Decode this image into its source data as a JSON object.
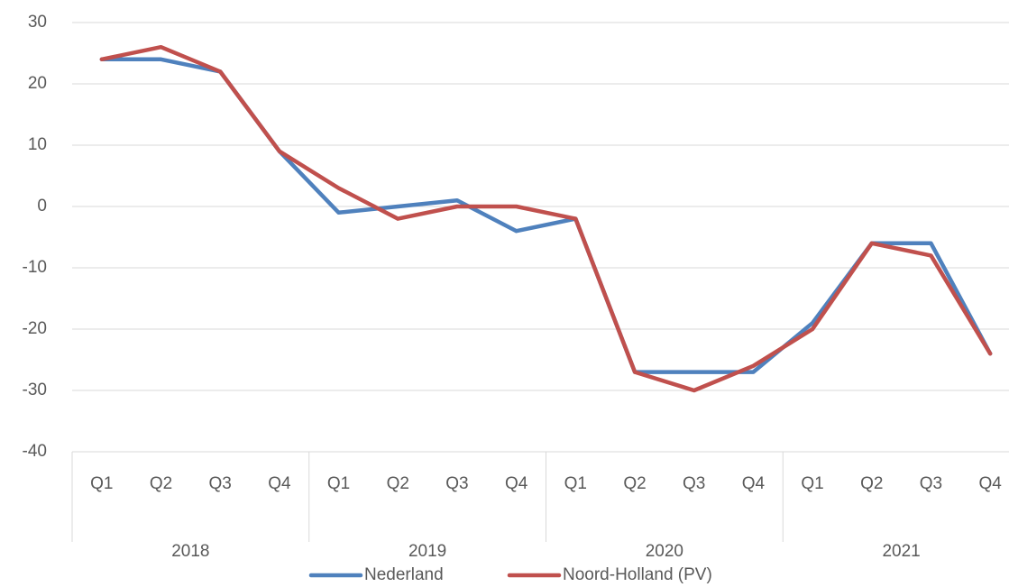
{
  "chart_data": {
    "type": "line",
    "categories": [
      "Q1",
      "Q2",
      "Q3",
      "Q4",
      "Q1",
      "Q2",
      "Q3",
      "Q4",
      "Q1",
      "Q2",
      "Q3",
      "Q4",
      "Q1",
      "Q2",
      "Q3",
      "Q4"
    ],
    "groups": [
      "2018",
      "2019",
      "2020",
      "2021"
    ],
    "series": [
      {
        "name": "Nederland",
        "color": "#4f81bd",
        "values": [
          24,
          24,
          22,
          9,
          -1,
          0,
          1,
          -4,
          -2,
          -27,
          -27,
          -27,
          -19,
          -6,
          -6,
          -24
        ]
      },
      {
        "name": "Noord-Holland (PV)",
        "color": "#c0504d",
        "values": [
          24,
          26,
          22,
          9,
          3,
          -2,
          0,
          0,
          -2,
          -27,
          -30,
          -26,
          -20,
          -6,
          -8,
          -24
        ]
      }
    ],
    "ylim": [
      -40,
      30
    ],
    "yticks": [
      -40,
      -30,
      -20,
      -10,
      0,
      10,
      20,
      30
    ],
    "grid": true,
    "legend": "bottom"
  }
}
